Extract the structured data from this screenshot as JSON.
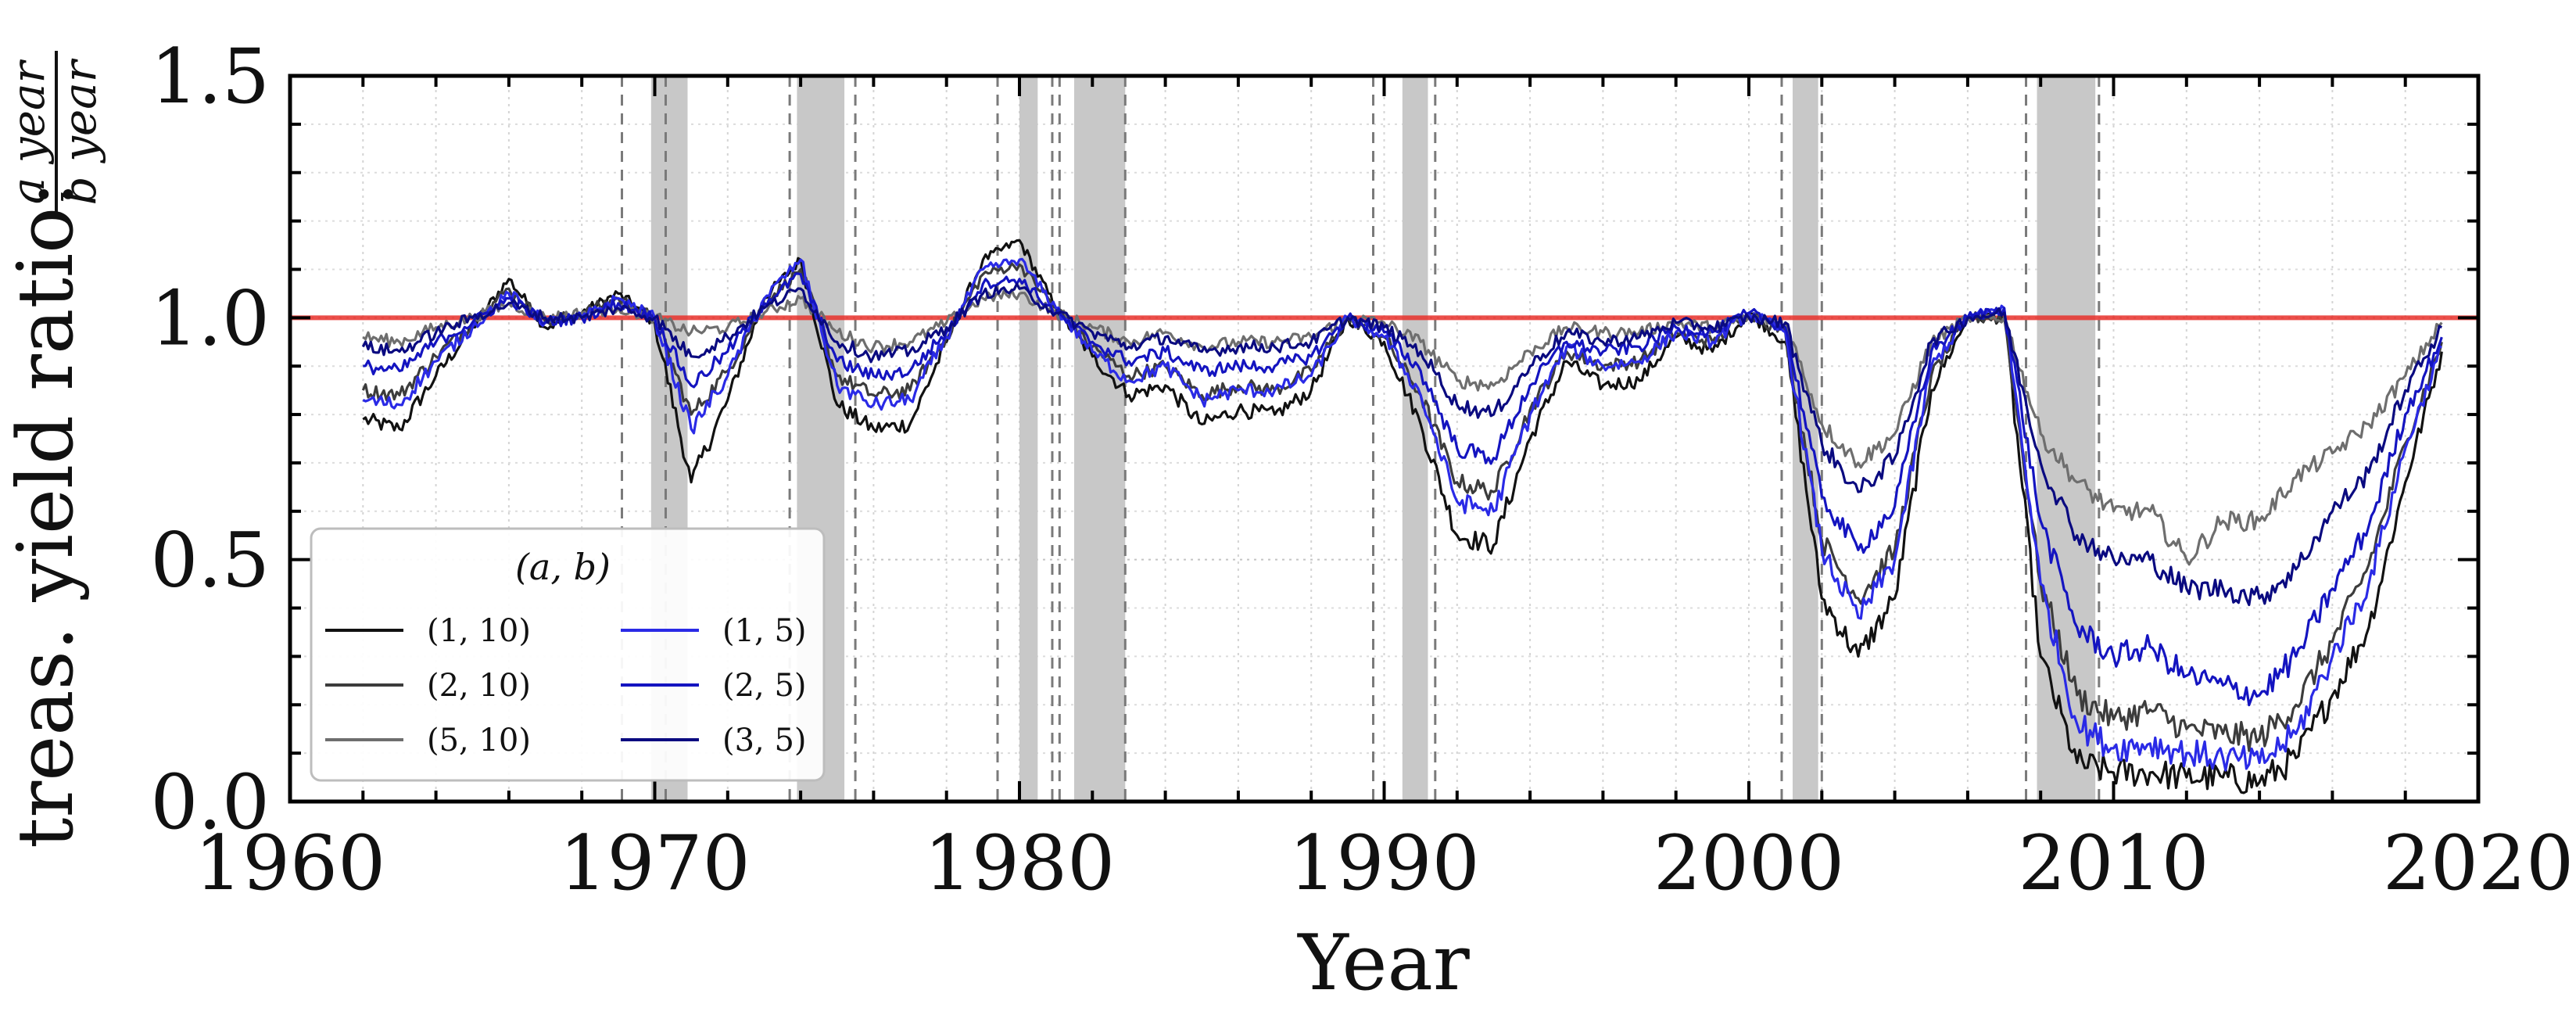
{
  "chart_data": {
    "type": "line",
    "xlabel": "Year",
    "ylabel": "treas. yield ratio:",
    "ylabel_fraction": {
      "numerator": "a year",
      "denominator": "b year"
    },
    "xlim": [
      1960,
      2020
    ],
    "ylim": [
      0.0,
      1.5
    ],
    "x_ticks": [
      {
        "value": 1960,
        "label": "1960"
      },
      {
        "value": 1970,
        "label": "1970"
      },
      {
        "value": 1980,
        "label": "1980"
      },
      {
        "value": 1990,
        "label": "1990"
      },
      {
        "value": 2000,
        "label": "2000"
      },
      {
        "value": 2010,
        "label": "2010"
      },
      {
        "value": 2020,
        "label": "2020"
      }
    ],
    "y_ticks": [
      {
        "value": 0.0,
        "label": "0.0"
      },
      {
        "value": 0.5,
        "label": "0.5"
      },
      {
        "value": 1.0,
        "label": "1.0"
      },
      {
        "value": 1.5,
        "label": "1.5"
      }
    ],
    "grid": true,
    "reference_line": {
      "y": 1.0,
      "color": "#e8302a"
    },
    "recession_bands": [
      [
        1969.9,
        1970.9
      ],
      [
        1973.9,
        1975.2
      ],
      [
        1980.0,
        1980.5
      ],
      [
        1981.5,
        1982.9
      ],
      [
        1990.5,
        1991.2
      ],
      [
        2001.2,
        2001.9
      ],
      [
        2007.9,
        2009.5
      ]
    ],
    "band_outer_lines": [
      [
        1969.1,
        1970.3
      ],
      [
        1973.7,
        1975.5
      ],
      [
        1979.4,
        1980.9
      ],
      [
        1981.1,
        1982.9
      ],
      [
        1989.7,
        1991.4
      ],
      [
        2000.9,
        2002.0
      ],
      [
        2007.6,
        2009.6
      ]
    ],
    "band_color": "#c8c8c8",
    "legend": {
      "title": "(a, b)",
      "placement": "bottom-left",
      "ncol": 2
    },
    "series": [
      {
        "name": "(1, 10)",
        "color": "#111111",
        "x": [
          1962,
          1963,
          1964,
          1965,
          1966,
          1967,
          1968,
          1969,
          1970,
          1971,
          1972,
          1973,
          1974,
          1975,
          1976,
          1977,
          1978,
          1979,
          1980,
          1981,
          1982,
          1983,
          1984,
          1985,
          1986,
          1987,
          1988,
          1989,
          1990,
          1991,
          1992,
          1993,
          1994,
          1995,
          1996,
          1997,
          1998,
          1999,
          2000,
          2001,
          2002,
          2003,
          2004,
          2005,
          2006,
          2007,
          2008,
          2009,
          2010,
          2011,
          2012,
          2013,
          2014,
          2015,
          2016,
          2017,
          2018,
          2019
        ],
        "y": [
          0.79,
          0.77,
          0.88,
          0.98,
          1.08,
          0.98,
          1.01,
          1.05,
          0.99,
          0.66,
          0.83,
          1.04,
          1.12,
          0.82,
          0.77,
          0.78,
          0.95,
          1.12,
          1.16,
          1.02,
          0.92,
          0.84,
          0.86,
          0.78,
          0.81,
          0.8,
          0.85,
          1.0,
          0.95,
          0.78,
          0.55,
          0.53,
          0.75,
          0.91,
          0.86,
          0.87,
          0.96,
          0.93,
          1.01,
          0.95,
          0.42,
          0.3,
          0.42,
          0.85,
          1.0,
          1.0,
          0.3,
          0.08,
          0.06,
          0.06,
          0.05,
          0.05,
          0.04,
          0.09,
          0.22,
          0.36,
          0.66,
          0.93
        ]
      },
      {
        "name": "(2, 10)",
        "color": "#3c3c3c",
        "x": [
          1962,
          1963,
          1964,
          1965,
          1966,
          1967,
          1968,
          1969,
          1970,
          1971,
          1972,
          1973,
          1974,
          1975,
          1976,
          1977,
          1978,
          1979,
          1980,
          1981,
          1982,
          1983,
          1984,
          1985,
          1986,
          1987,
          1988,
          1989,
          1990,
          1991,
          1992,
          1993,
          1994,
          1995,
          1996,
          1997,
          1998,
          1999,
          2000,
          2001,
          2002,
          2003,
          2004,
          2005,
          2006,
          2007,
          2008,
          2009,
          2010,
          2011,
          2012,
          2013,
          2014,
          2015,
          2016,
          2017,
          2018,
          2019
        ],
        "y": [
          0.85,
          0.84,
          0.92,
          0.99,
          1.06,
          0.99,
          1.01,
          1.04,
          1.0,
          0.8,
          0.89,
          1.03,
          1.1,
          0.88,
          0.84,
          0.85,
          0.96,
          1.09,
          1.11,
          1.02,
          0.94,
          0.88,
          0.9,
          0.84,
          0.86,
          0.85,
          0.89,
          1.0,
          0.96,
          0.84,
          0.66,
          0.64,
          0.81,
          0.93,
          0.9,
          0.91,
          0.97,
          0.95,
          1.01,
          0.97,
          0.54,
          0.42,
          0.52,
          0.88,
          1.0,
          1.0,
          0.45,
          0.22,
          0.17,
          0.19,
          0.15,
          0.14,
          0.13,
          0.2,
          0.33,
          0.49,
          0.74,
          0.95
        ]
      },
      {
        "name": "(5, 10)",
        "color": "#6e6e6e",
        "x": [
          1962,
          1963,
          1964,
          1965,
          1966,
          1967,
          1968,
          1969,
          1970,
          1971,
          1972,
          1973,
          1974,
          1975,
          1976,
          1977,
          1978,
          1979,
          1980,
          1981,
          1982,
          1983,
          1984,
          1985,
          1986,
          1987,
          1988,
          1989,
          1990,
          1991,
          1992,
          1993,
          1994,
          1995,
          1996,
          1997,
          1998,
          1999,
          2000,
          2001,
          2002,
          2003,
          2004,
          2005,
          2006,
          2007,
          2008,
          2009,
          2010,
          2011,
          2012,
          2013,
          2014,
          2015,
          2016,
          2017,
          2018,
          2019
        ],
        "y": [
          0.96,
          0.95,
          0.98,
          1.0,
          1.03,
          1.0,
          1.01,
          1.02,
          1.0,
          0.97,
          0.98,
          1.01,
          1.04,
          0.97,
          0.94,
          0.95,
          0.99,
          1.04,
          1.05,
          1.01,
          0.98,
          0.95,
          0.97,
          0.94,
          0.95,
          0.95,
          0.96,
          1.0,
          0.99,
          0.95,
          0.87,
          0.86,
          0.93,
          0.98,
          0.97,
          0.97,
          0.99,
          0.98,
          1.0,
          0.99,
          0.78,
          0.7,
          0.76,
          0.95,
          1.0,
          1.0,
          0.76,
          0.66,
          0.6,
          0.6,
          0.5,
          0.58,
          0.58,
          0.67,
          0.72,
          0.78,
          0.88,
          0.99
        ]
      },
      {
        "name": "(1, 5)",
        "color": "#2a2ae6",
        "x": [
          1962,
          1963,
          1964,
          1965,
          1966,
          1967,
          1968,
          1969,
          1970,
          1971,
          1972,
          1973,
          1974,
          1975,
          1976,
          1977,
          1978,
          1979,
          1980,
          1981,
          1982,
          1983,
          1984,
          1985,
          1986,
          1987,
          1988,
          1989,
          1990,
          1991,
          1992,
          1993,
          1994,
          1995,
          1996,
          1997,
          1998,
          1999,
          2000,
          2001,
          2002,
          2003,
          2004,
          2005,
          2006,
          2007,
          2008,
          2009,
          2010,
          2011,
          2012,
          2013,
          2014,
          2015,
          2016,
          2017,
          2018,
          2019
        ],
        "y": [
          0.83,
          0.82,
          0.91,
          0.98,
          1.05,
          0.99,
          1.0,
          1.04,
          1.0,
          0.77,
          0.88,
          1.04,
          1.12,
          0.86,
          0.82,
          0.83,
          0.96,
          1.1,
          1.12,
          1.02,
          0.93,
          0.87,
          0.9,
          0.83,
          0.85,
          0.85,
          0.88,
          1.0,
          0.96,
          0.84,
          0.62,
          0.6,
          0.8,
          0.94,
          0.9,
          0.91,
          0.97,
          0.95,
          1.01,
          0.97,
          0.52,
          0.38,
          0.5,
          0.9,
          1.0,
          1.02,
          0.45,
          0.16,
          0.11,
          0.12,
          0.1,
          0.09,
          0.08,
          0.14,
          0.3,
          0.45,
          0.73,
          0.94
        ]
      },
      {
        "name": "(2, 5)",
        "color": "#1414c0",
        "x": [
          1962,
          1963,
          1964,
          1965,
          1966,
          1967,
          1968,
          1969,
          1970,
          1971,
          1972,
          1973,
          1974,
          1975,
          1976,
          1977,
          1978,
          1979,
          1980,
          1981,
          1982,
          1983,
          1984,
          1985,
          1986,
          1987,
          1988,
          1989,
          1990,
          1991,
          1992,
          1993,
          1994,
          1995,
          1996,
          1997,
          1998,
          1999,
          2000,
          2001,
          2002,
          2003,
          2004,
          2005,
          2006,
          2007,
          2008,
          2009,
          2010,
          2011,
          2012,
          2013,
          2014,
          2015,
          2016,
          2017,
          2018,
          2019
        ],
        "y": [
          0.9,
          0.89,
          0.95,
          0.99,
          1.04,
          0.99,
          1.0,
          1.03,
          1.0,
          0.86,
          0.93,
          1.03,
          1.09,
          0.91,
          0.88,
          0.89,
          0.97,
          1.07,
          1.08,
          1.01,
          0.95,
          0.91,
          0.93,
          0.89,
          0.9,
          0.9,
          0.92,
          1.0,
          0.97,
          0.89,
          0.73,
          0.71,
          0.86,
          0.95,
          0.93,
          0.94,
          0.98,
          0.97,
          1.01,
          0.98,
          0.63,
          0.52,
          0.61,
          0.93,
          1.0,
          1.02,
          0.58,
          0.36,
          0.3,
          0.32,
          0.26,
          0.24,
          0.22,
          0.3,
          0.44,
          0.57,
          0.8,
          0.96
        ]
      },
      {
        "name": "(3, 5)",
        "color": "#0a0a80",
        "x": [
          1962,
          1963,
          1964,
          1965,
          1966,
          1967,
          1968,
          1969,
          1970,
          1971,
          1972,
          1973,
          1974,
          1975,
          1976,
          1977,
          1978,
          1979,
          1980,
          1981,
          1982,
          1983,
          1984,
          1985,
          1986,
          1987,
          1988,
          1989,
          1990,
          1991,
          1992,
          1993,
          1994,
          1995,
          1996,
          1997,
          1998,
          1999,
          2000,
          2001,
          2002,
          2003,
          2004,
          2005,
          2006,
          2007,
          2008,
          2009,
          2010,
          2011,
          2012,
          2013,
          2014,
          2015,
          2016,
          2017,
          2018,
          2019
        ],
        "y": [
          0.94,
          0.93,
          0.97,
          1.0,
          1.03,
          1.0,
          1.0,
          1.02,
          1.0,
          0.92,
          0.96,
          1.02,
          1.06,
          0.95,
          0.92,
          0.93,
          0.98,
          1.05,
          1.06,
          1.01,
          0.97,
          0.94,
          0.96,
          0.93,
          0.94,
          0.94,
          0.95,
          1.0,
          0.98,
          0.93,
          0.82,
          0.8,
          0.9,
          0.97,
          0.95,
          0.96,
          0.99,
          0.98,
          1.0,
          0.99,
          0.74,
          0.64,
          0.71,
          0.95,
          1.0,
          1.01,
          0.7,
          0.55,
          0.5,
          0.5,
          0.44,
          0.44,
          0.42,
          0.48,
          0.6,
          0.68,
          0.85,
          0.98
        ]
      }
    ]
  }
}
